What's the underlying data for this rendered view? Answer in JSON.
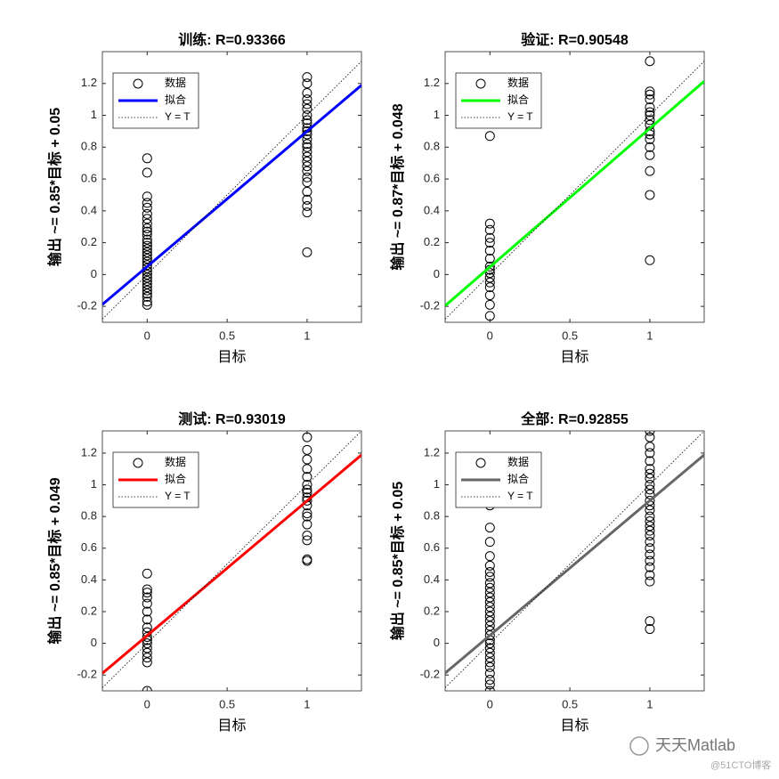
{
  "chart_data": [
    {
      "type": "scatter",
      "title": "训练: R=0.93366",
      "xlabel": "目标",
      "ylabel": "输出 ~= 0.85*目标 + 0.05",
      "xlim": [
        -0.28,
        1.34
      ],
      "ylim": [
        -0.3,
        1.4
      ],
      "xticks": [
        0,
        0.5,
        1
      ],
      "yticks": [
        -0.2,
        0,
        0.2,
        0.4,
        0.6,
        0.8,
        1,
        1.2
      ],
      "series": [
        {
          "name": "数据",
          "mode": "marker",
          "color": "#000000",
          "x": [
            0,
            0,
            0,
            0,
            0,
            0,
            0,
            0,
            0,
            0,
            0,
            0,
            0,
            0,
            0,
            0,
            0,
            0,
            0,
            0,
            0,
            0,
            0,
            0,
            0,
            0,
            0,
            0,
            0,
            0,
            0,
            0,
            1,
            1,
            1,
            1,
            1,
            1,
            1,
            1,
            1,
            1,
            1,
            1,
            1,
            1,
            1,
            1,
            1,
            1,
            1,
            1,
            1,
            1,
            1,
            1,
            1,
            1,
            1
          ],
          "values": [
            0.73,
            0.64,
            0.49,
            0.45,
            0.42,
            0.38,
            0.35,
            0.32,
            0.29,
            0.27,
            0.25,
            0.22,
            0.2,
            0.18,
            0.16,
            0.14,
            0.12,
            0.1,
            0.08,
            0.06,
            0.04,
            0.02,
            0,
            -0.02,
            -0.04,
            -0.06,
            -0.08,
            -0.1,
            -0.12,
            -0.14,
            -0.17,
            -0.19,
            1.24,
            1.2,
            1.14,
            1.1,
            1.07,
            1.04,
            1.0,
            0.97,
            0.95,
            0.92,
            0.9,
            0.88,
            0.85,
            0.82,
            0.8,
            0.77,
            0.74,
            0.71,
            0.68,
            0.65,
            0.61,
            0.58,
            0.52,
            0.47,
            0.43,
            0.39,
            0.14
          ]
        },
        {
          "name": "拟合",
          "mode": "line",
          "color": "#0000ff",
          "x": [
            -0.28,
            1.34
          ],
          "values": [
            -0.188,
            1.189
          ]
        },
        {
          "name": "Y = T",
          "mode": "dotted",
          "color": "#000000",
          "x": [
            -0.28,
            1.34
          ],
          "values": [
            -0.28,
            1.34
          ]
        }
      ]
    },
    {
      "type": "scatter",
      "title": "验证: R=0.90548",
      "xlabel": "目标",
      "ylabel": "输出 ~= 0.87*目标 + 0.048",
      "xlim": [
        -0.28,
        1.34
      ],
      "ylim": [
        -0.3,
        1.4
      ],
      "xticks": [
        0,
        0.5,
        1
      ],
      "yticks": [
        -0.2,
        0,
        0.2,
        0.4,
        0.6,
        0.8,
        1,
        1.2
      ],
      "series": [
        {
          "name": "数据",
          "mode": "marker",
          "color": "#000000",
          "x": [
            0,
            0,
            0,
            0,
            0,
            0,
            0,
            0,
            0,
            0,
            0,
            0,
            0,
            0,
            0,
            0,
            1,
            1,
            1,
            1,
            1,
            1,
            1,
            1,
            1,
            1,
            1,
            1,
            1,
            1,
            1,
            1,
            1
          ],
          "values": [
            0.87,
            0.32,
            0.28,
            0.23,
            0.2,
            0.15,
            0.1,
            0.05,
            0.03,
            0.01,
            -0.02,
            -0.05,
            -0.08,
            -0.13,
            -0.19,
            -0.26,
            1.34,
            1.15,
            1.13,
            1.1,
            1.05,
            1.02,
            1.0,
            0.97,
            0.94,
            0.9,
            0.88,
            0.85,
            0.8,
            0.75,
            0.65,
            0.5,
            0.09
          ]
        },
        {
          "name": "拟合",
          "mode": "line",
          "color": "#00ff00",
          "x": [
            -0.28,
            1.34
          ],
          "values": [
            -0.196,
            1.214
          ]
        },
        {
          "name": "Y = T",
          "mode": "dotted",
          "color": "#000000",
          "x": [
            -0.28,
            1.34
          ],
          "values": [
            -0.28,
            1.34
          ]
        }
      ]
    },
    {
      "type": "scatter",
      "title": "测试: R=0.93019",
      "xlabel": "目标",
      "ylabel": "输出 ~= 0.85*目标 + 0.049",
      "xlim": [
        -0.28,
        1.34
      ],
      "ylim": [
        -0.3,
        1.34
      ],
      "xticks": [
        0,
        0.5,
        1
      ],
      "yticks": [
        -0.2,
        0,
        0.2,
        0.4,
        0.6,
        0.8,
        1,
        1.2
      ],
      "series": [
        {
          "name": "数据",
          "mode": "marker",
          "color": "#000000",
          "x": [
            0,
            0,
            0,
            0,
            0,
            0,
            0,
            0,
            0,
            0,
            0,
            0,
            0,
            0,
            0,
            0,
            0,
            1,
            1,
            1,
            1,
            1,
            1,
            1,
            1,
            1,
            1,
            1,
            1,
            1,
            1,
            1,
            1,
            1,
            1
          ],
          "values": [
            0.44,
            0.34,
            0.32,
            0.29,
            0.25,
            0.2,
            0.15,
            0.1,
            0.07,
            0.04,
            0.02,
            0,
            -0.03,
            -0.06,
            -0.09,
            -0.12,
            -0.3,
            1.3,
            1.22,
            1.16,
            1.1,
            1.05,
            1.0,
            0.97,
            0.95,
            0.92,
            0.9,
            0.87,
            0.82,
            0.8,
            0.75,
            0.68,
            0.65,
            0.53,
            0.52
          ]
        },
        {
          "name": "拟合",
          "mode": "line",
          "color": "#ff0000",
          "x": [
            -0.28,
            1.34
          ],
          "values": [
            -0.189,
            1.188
          ]
        },
        {
          "name": "Y = T",
          "mode": "dotted",
          "color": "#000000",
          "x": [
            -0.28,
            1.34
          ],
          "values": [
            -0.28,
            1.34
          ]
        }
      ]
    },
    {
      "type": "scatter",
      "title": "全部: R=0.92855",
      "xlabel": "目标",
      "ylabel": "输出 ~= 0.85*目标 + 0.05",
      "xlim": [
        -0.28,
        1.34
      ],
      "ylim": [
        -0.3,
        1.34
      ],
      "xticks": [
        0,
        0.5,
        1
      ],
      "yticks": [
        -0.2,
        0,
        0.2,
        0.4,
        0.6,
        0.8,
        1,
        1.2
      ],
      "series": [
        {
          "name": "数据",
          "mode": "marker",
          "color": "#000000",
          "x": [
            0,
            0,
            0,
            0,
            0,
            0,
            0,
            0,
            0,
            0,
            0,
            0,
            0,
            0,
            0,
            0,
            0,
            0,
            0,
            0,
            0,
            0,
            0,
            0,
            0,
            0,
            0,
            0,
            0,
            0,
            1,
            1,
            1,
            1,
            1,
            1,
            1,
            1,
            1,
            1,
            1,
            1,
            1,
            1,
            1,
            1,
            1,
            1,
            1,
            1,
            1,
            1,
            1,
            1,
            1,
            1,
            1,
            1
          ],
          "values": [
            0.87,
            0.73,
            0.64,
            0.55,
            0.49,
            0.45,
            0.42,
            0.38,
            0.35,
            0.32,
            0.29,
            0.26,
            0.23,
            0.2,
            0.17,
            0.14,
            0.11,
            0.08,
            0.05,
            0.02,
            0,
            -0.03,
            -0.06,
            -0.09,
            -0.12,
            -0.15,
            -0.19,
            -0.23,
            -0.26,
            -0.3,
            1.34,
            1.3,
            1.24,
            1.2,
            1.15,
            1.1,
            1.07,
            1.04,
            1.0,
            0.97,
            0.94,
            0.9,
            0.87,
            0.84,
            0.8,
            0.77,
            0.74,
            0.71,
            0.68,
            0.64,
            0.6,
            0.56,
            0.52,
            0.48,
            0.43,
            0.39,
            0.14,
            0.09
          ]
        },
        {
          "name": "拟合",
          "mode": "line",
          "color": "#666666",
          "x": [
            -0.28,
            1.34
          ],
          "values": [
            -0.188,
            1.189
          ]
        },
        {
          "name": "Y = T",
          "mode": "dotted",
          "color": "#000000",
          "x": [
            -0.28,
            1.34
          ],
          "values": [
            -0.28,
            1.34
          ]
        }
      ]
    }
  ],
  "watermark": {
    "text": "天天Matlab",
    "source": "@51CTO博客"
  }
}
